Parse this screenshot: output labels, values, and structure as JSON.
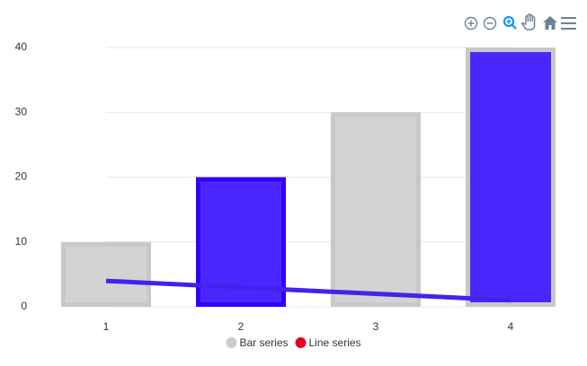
{
  "chart_data": {
    "type": "bar",
    "categories": [
      "1",
      "2",
      "3",
      "4"
    ],
    "ylim": [
      0,
      40
    ],
    "yticks": [
      0,
      10,
      20,
      30,
      40
    ],
    "grid": true,
    "series": [
      {
        "name": "Bar series",
        "type": "bar",
        "legend_color": "#cccccc",
        "colors": [
          "#d3d3d3",
          "#4b27ff",
          "#d3d3d3",
          "#4b27ff"
        ],
        "stroke_colors": [
          "#c8c8c8",
          "#3300ff",
          "#c8c8c8",
          "#c8c8c8"
        ],
        "values": [
          10,
          20,
          30,
          40
        ]
      },
      {
        "name": "Line series",
        "type": "line",
        "color": "#4422ee",
        "legend_color": "#e8001c",
        "values": [
          4,
          3,
          2,
          1
        ]
      }
    ]
  }
}
